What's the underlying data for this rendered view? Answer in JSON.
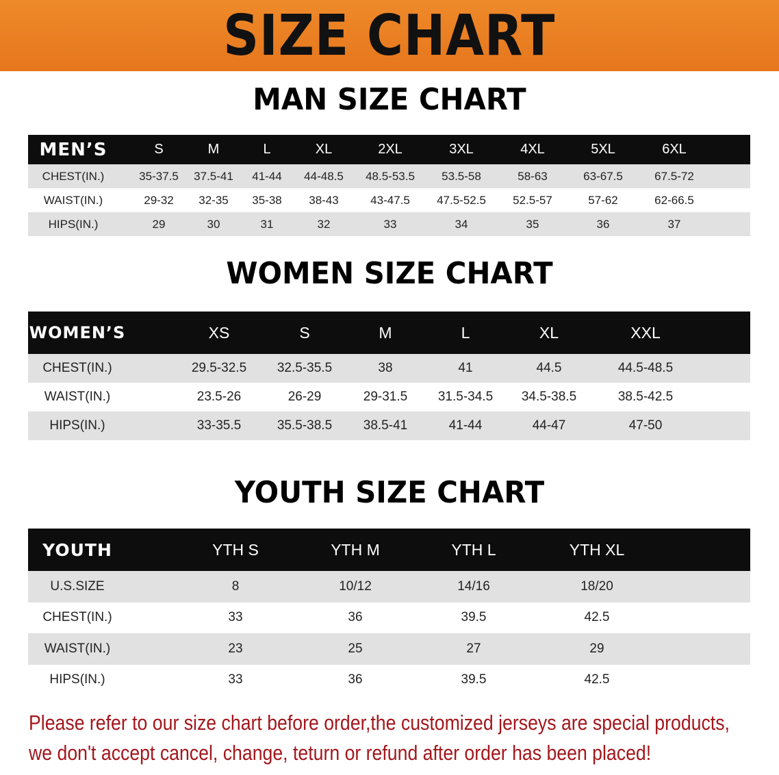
{
  "banner": {
    "title": "SIZE CHART",
    "color": "#e8781f"
  },
  "men": {
    "title": "MAN SIZE CHART",
    "header": [
      "MEN’S",
      "S",
      "M",
      "L",
      "XL",
      "2XL",
      "3XL",
      "4XL",
      "5XL",
      "6XL"
    ],
    "rows": [
      [
        "CHEST(IN.)",
        "35-37.5",
        "37.5-41",
        "41-44",
        "44-48.5",
        "48.5-53.5",
        "53.5-58",
        "58-63",
        "63-67.5",
        "67.5-72"
      ],
      [
        "WAIST(IN.)",
        "29-32",
        "32-35",
        "35-38",
        "38-43",
        "43-47.5",
        "47.5-52.5",
        "52.5-57",
        "57-62",
        "62-66.5"
      ],
      [
        "HIPS(IN.)",
        "29",
        "30",
        "31",
        "32",
        "33",
        "34",
        "35",
        "36",
        "37"
      ]
    ]
  },
  "women": {
    "title": "WOMEN SIZE CHART",
    "header": [
      "WOMEN’S",
      "XS",
      "S",
      "M",
      "L",
      "XL",
      "XXL"
    ],
    "rows": [
      [
        "CHEST(IN.)",
        "29.5-32.5",
        "32.5-35.5",
        "38",
        "41",
        "44.5",
        "44.5-48.5"
      ],
      [
        "WAIST(IN.)",
        "23.5-26",
        "26-29",
        "29-31.5",
        "31.5-34.5",
        "34.5-38.5",
        "38.5-42.5"
      ],
      [
        "HIPS(IN.)",
        "33-35.5",
        "35.5-38.5",
        "38.5-41",
        "41-44",
        "44-47",
        "47-50"
      ]
    ]
  },
  "youth": {
    "title": "YOUTH SIZE CHART",
    "header": [
      "YOUTH",
      "YTH S",
      "YTH M",
      "YTH L",
      "YTH XL"
    ],
    "rows": [
      [
        "U.S.SIZE",
        "8",
        "10/12",
        "14/16",
        "18/20"
      ],
      [
        "CHEST(IN.)",
        "33",
        "36",
        "39.5",
        "42.5"
      ],
      [
        "WAIST(IN.)",
        "23",
        "25",
        "27",
        "29"
      ],
      [
        "HIPS(IN.)",
        "33",
        "36",
        "39.5",
        "42.5"
      ]
    ]
  },
  "notice": {
    "line1": "Please refer to our size chart before order,the customized jerseys are special products,",
    "line2": "we don't accept cancel, change, teturn or refund after order has been placed!",
    "color": "#a3171c"
  }
}
